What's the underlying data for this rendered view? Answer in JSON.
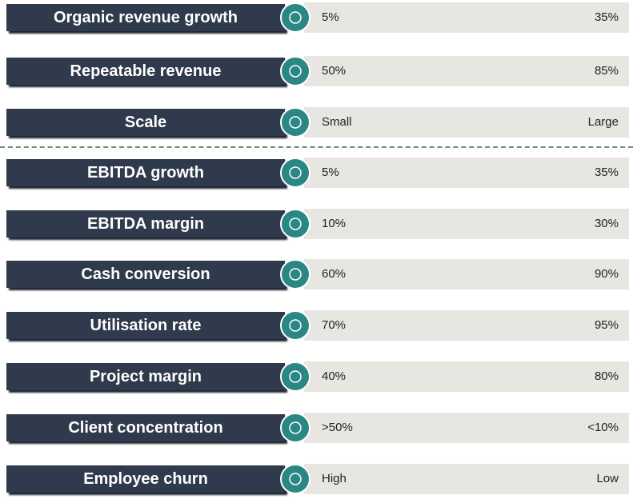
{
  "rows": [
    {
      "label": "Organic revenue growth",
      "low": "5%",
      "high": "35%"
    },
    {
      "label": "Repeatable revenue",
      "low": "50%",
      "high": "85%"
    },
    {
      "label": "Scale",
      "low": "Small",
      "high": "Large"
    },
    {
      "label": "EBITDA growth",
      "low": "5%",
      "high": "35%"
    },
    {
      "label": "EBITDA margin",
      "low": "10%",
      "high": "30%"
    },
    {
      "label": "Cash conversion",
      "low": "60%",
      "high": "90%"
    },
    {
      "label": "Utilisation rate",
      "low": "70%",
      "high": "95%"
    },
    {
      "label": "Project margin",
      "low": "40%",
      "high": "80%"
    },
    {
      "label": "Client concentration",
      "low": ">50%",
      "high": "<10%"
    },
    {
      "label": "Employee churn",
      "low": "High",
      "high": "Low"
    }
  ]
}
